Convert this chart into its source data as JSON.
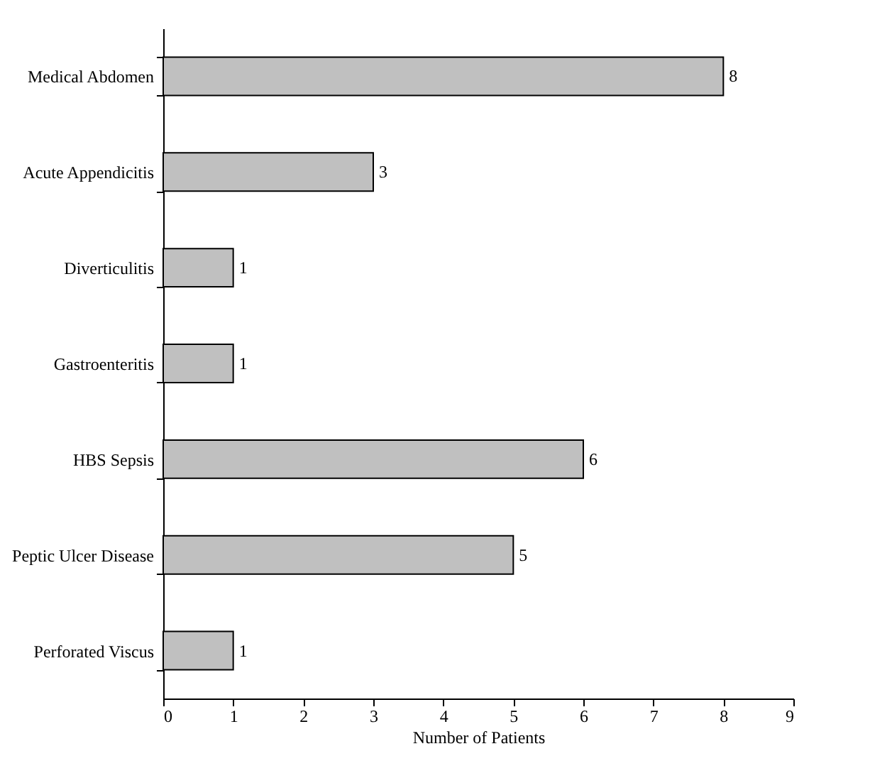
{
  "chart_data": {
    "type": "bar",
    "orientation": "horizontal",
    "xlabel": "Number of Patients",
    "categories": [
      "Medical Abdomen",
      "Acute Appendicitis",
      "Diverticulitis",
      "Gastroenteritis",
      "HBS Sepsis",
      "Peptic Ulcer Disease",
      "Perforated Viscus"
    ],
    "values": [
      8,
      3,
      1,
      1,
      6,
      5,
      1
    ],
    "color": "#c0c0c0",
    "xlim": [
      0,
      9
    ],
    "xticks": [
      0,
      1,
      2,
      3,
      4,
      5,
      6,
      7,
      8,
      9
    ],
    "data_labels": true,
    "grid": false
  }
}
